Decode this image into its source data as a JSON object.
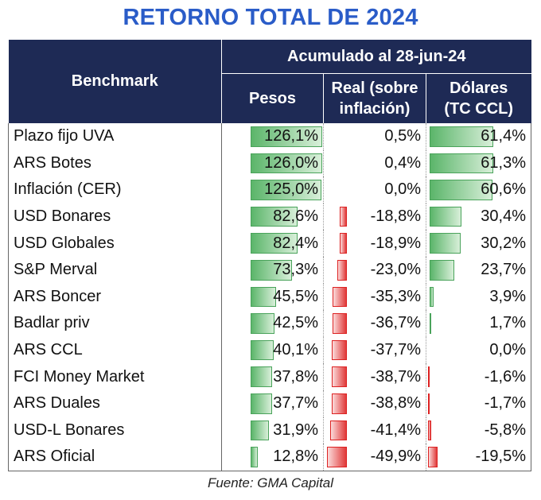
{
  "title": "RETORNO TOTAL DE 2024",
  "header": {
    "benchmark": "Benchmark",
    "group": "Acumulado al 28-jun-24",
    "pesos": "Pesos",
    "real_line1": "Real (sobre",
    "real_line2": "inflación)",
    "usd_line1": "Dólares",
    "usd_line2": "(TC CCL)"
  },
  "source": "Fuente: GMA Capital",
  "colors": {
    "title": "#2a5cc8",
    "header_bg": "#1e2a55",
    "positive_bar": "#5bb56a",
    "negative_bar": "#e03a3a"
  },
  "chart_data": {
    "type": "table",
    "title": "RETORNO TOTAL DE 2024",
    "columns": [
      "Benchmark",
      "Pesos",
      "Real (sobre inflación)",
      "Dólares (TC CCL)"
    ],
    "rows": [
      {
        "name": "Plazo fijo UVA",
        "pesos": 126.1,
        "real": 0.5,
        "usd": 61.4,
        "pesos_label": "126,1%",
        "real_label": "0,5%",
        "usd_label": "61,4%"
      },
      {
        "name": "ARS Botes",
        "pesos": 126.0,
        "real": 0.4,
        "usd": 61.3,
        "pesos_label": "126,0%",
        "real_label": "0,4%",
        "usd_label": "61,3%"
      },
      {
        "name": "Inflación (CER)",
        "pesos": 125.0,
        "real": 0.0,
        "usd": 60.6,
        "pesos_label": "125,0%",
        "real_label": "0,0%",
        "usd_label": "60,6%"
      },
      {
        "name": "USD Bonares",
        "pesos": 82.6,
        "real": -18.8,
        "usd": 30.4,
        "pesos_label": "82,6%",
        "real_label": "-18,8%",
        "usd_label": "30,4%"
      },
      {
        "name": "USD Globales",
        "pesos": 82.4,
        "real": -18.9,
        "usd": 30.2,
        "pesos_label": "82,4%",
        "real_label": "-18,9%",
        "usd_label": "30,2%"
      },
      {
        "name": "S&P Merval",
        "pesos": 73.3,
        "real": -23.0,
        "usd": 23.7,
        "pesos_label": "73,3%",
        "real_label": "-23,0%",
        "usd_label": "23,7%"
      },
      {
        "name": "ARS Boncer",
        "pesos": 45.5,
        "real": -35.3,
        "usd": 3.9,
        "pesos_label": "45,5%",
        "real_label": "-35,3%",
        "usd_label": "3,9%"
      },
      {
        "name": "Badlar priv",
        "pesos": 42.5,
        "real": -36.7,
        "usd": 1.7,
        "pesos_label": "42,5%",
        "real_label": "-36,7%",
        "usd_label": "1,7%"
      },
      {
        "name": "ARS CCL",
        "pesos": 40.1,
        "real": -37.7,
        "usd": 0.0,
        "pesos_label": "40,1%",
        "real_label": "-37,7%",
        "usd_label": "0,0%"
      },
      {
        "name": "FCI Money Market",
        "pesos": 37.8,
        "real": -38.7,
        "usd": -1.6,
        "pesos_label": "37,8%",
        "real_label": "-38,7%",
        "usd_label": "-1,6%"
      },
      {
        "name": "ARS Duales",
        "pesos": 37.7,
        "real": -38.8,
        "usd": -1.7,
        "pesos_label": "37,7%",
        "real_label": "-38,8%",
        "usd_label": "-1,7%"
      },
      {
        "name": "USD-L Bonares",
        "pesos": 31.9,
        "real": -41.4,
        "usd": -5.8,
        "pesos_label": "31,9%",
        "real_label": "-41,4%",
        "usd_label": "-5,8%"
      },
      {
        "name": "ARS Oficial",
        "pesos": 12.8,
        "real": -49.9,
        "usd": -19.5,
        "pesos_label": "12,8%",
        "real_label": "-49,9%",
        "usd_label": "-19,5%"
      }
    ]
  }
}
